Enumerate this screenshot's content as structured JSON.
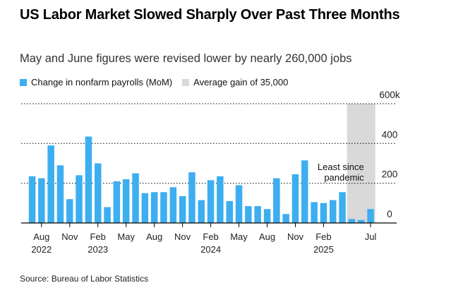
{
  "title": "US Labor Market Slowed Sharply Over Past Three Months",
  "subtitle": "May and June figures were revised lower by nearly 260,000 jobs",
  "legend": {
    "series_label": "Change in nonfarm payrolls (MoM)",
    "band_label": "Average gain of 35,000"
  },
  "source": "Source: Bureau of Labor Statistics",
  "colors": {
    "bar": "#3daef0",
    "band": "#d9d9d9",
    "axis": "#000000",
    "grid": "#000000"
  },
  "chart_data": {
    "type": "bar",
    "x": [
      "2022-07",
      "2022-08",
      "2022-09",
      "2022-10",
      "2022-11",
      "2022-12",
      "2023-01",
      "2023-02",
      "2023-03",
      "2023-04",
      "2023-05",
      "2023-06",
      "2023-07",
      "2023-08",
      "2023-09",
      "2023-10",
      "2023-11",
      "2023-12",
      "2024-01",
      "2024-02",
      "2024-03",
      "2024-04",
      "2024-05",
      "2024-06",
      "2024-07",
      "2024-08",
      "2024-09",
      "2024-10",
      "2024-11",
      "2024-12",
      "2025-01",
      "2025-02",
      "2025-03",
      "2025-04",
      "2025-05",
      "2025-06",
      "2025-07"
    ],
    "values": [
      235,
      225,
      390,
      290,
      120,
      240,
      435,
      300,
      80,
      210,
      220,
      250,
      150,
      155,
      155,
      180,
      135,
      255,
      115,
      215,
      235,
      110,
      190,
      85,
      85,
      70,
      225,
      45,
      245,
      315,
      105,
      100,
      115,
      155,
      20,
      15,
      70
    ],
    "ylim": [
      0,
      600
    ],
    "yticks": [
      0,
      200,
      400,
      600
    ],
    "ytick_labels": [
      "0",
      "200",
      "400",
      "600k"
    ],
    "xtick_labels": [
      {
        "month": "2022-08",
        "line1": "Aug",
        "line2": "2022"
      },
      {
        "month": "2022-11",
        "line1": "Nov",
        "line2": ""
      },
      {
        "month": "2023-02",
        "line1": "Feb",
        "line2": "2023"
      },
      {
        "month": "2023-05",
        "line1": "May",
        "line2": ""
      },
      {
        "month": "2023-08",
        "line1": "Aug",
        "line2": ""
      },
      {
        "month": "2023-11",
        "line1": "Nov",
        "line2": ""
      },
      {
        "month": "2024-02",
        "line1": "Feb",
        "line2": "2024"
      },
      {
        "month": "2024-05",
        "line1": "May",
        "line2": ""
      },
      {
        "month": "2024-08",
        "line1": "Aug",
        "line2": ""
      },
      {
        "month": "2024-11",
        "line1": "Nov",
        "line2": ""
      },
      {
        "month": "2025-02",
        "line1": "Feb",
        "line2": "2025"
      },
      {
        "month": "2025-07",
        "line1": "Jul",
        "line2": ""
      }
    ],
    "highlight_band": {
      "from": "2025-05",
      "to": "2025-07",
      "label": "Average gain of 35,000"
    },
    "annotation": {
      "month": "2025-06",
      "line1": "Least since",
      "line2": "pandemic"
    },
    "grid": true
  }
}
